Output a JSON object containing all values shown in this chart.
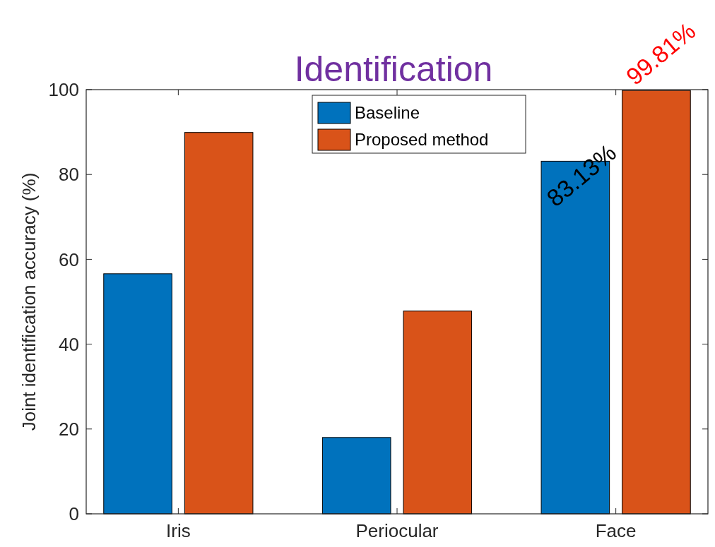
{
  "chart_data": {
    "type": "bar",
    "title": "Identification",
    "ylabel": "Joint identification accuracy (%)",
    "categories": [
      "Iris",
      "Periocular",
      "Face"
    ],
    "series": [
      {
        "name": "Baseline",
        "color": "#0072bd",
        "values": [
          56.6,
          18.0,
          83.13
        ],
        "value_labels": [
          null,
          null,
          "83.13%"
        ]
      },
      {
        "name": "Proposed method",
        "color": "#d95319",
        "values": [
          89.9,
          47.8,
          99.81
        ],
        "value_labels": [
          null,
          null,
          "99.81%"
        ]
      }
    ],
    "ylim": [
      0,
      100
    ],
    "yticks": [
      0,
      20,
      40,
      60,
      80,
      100
    ],
    "legend": "top",
    "grid": false
  }
}
